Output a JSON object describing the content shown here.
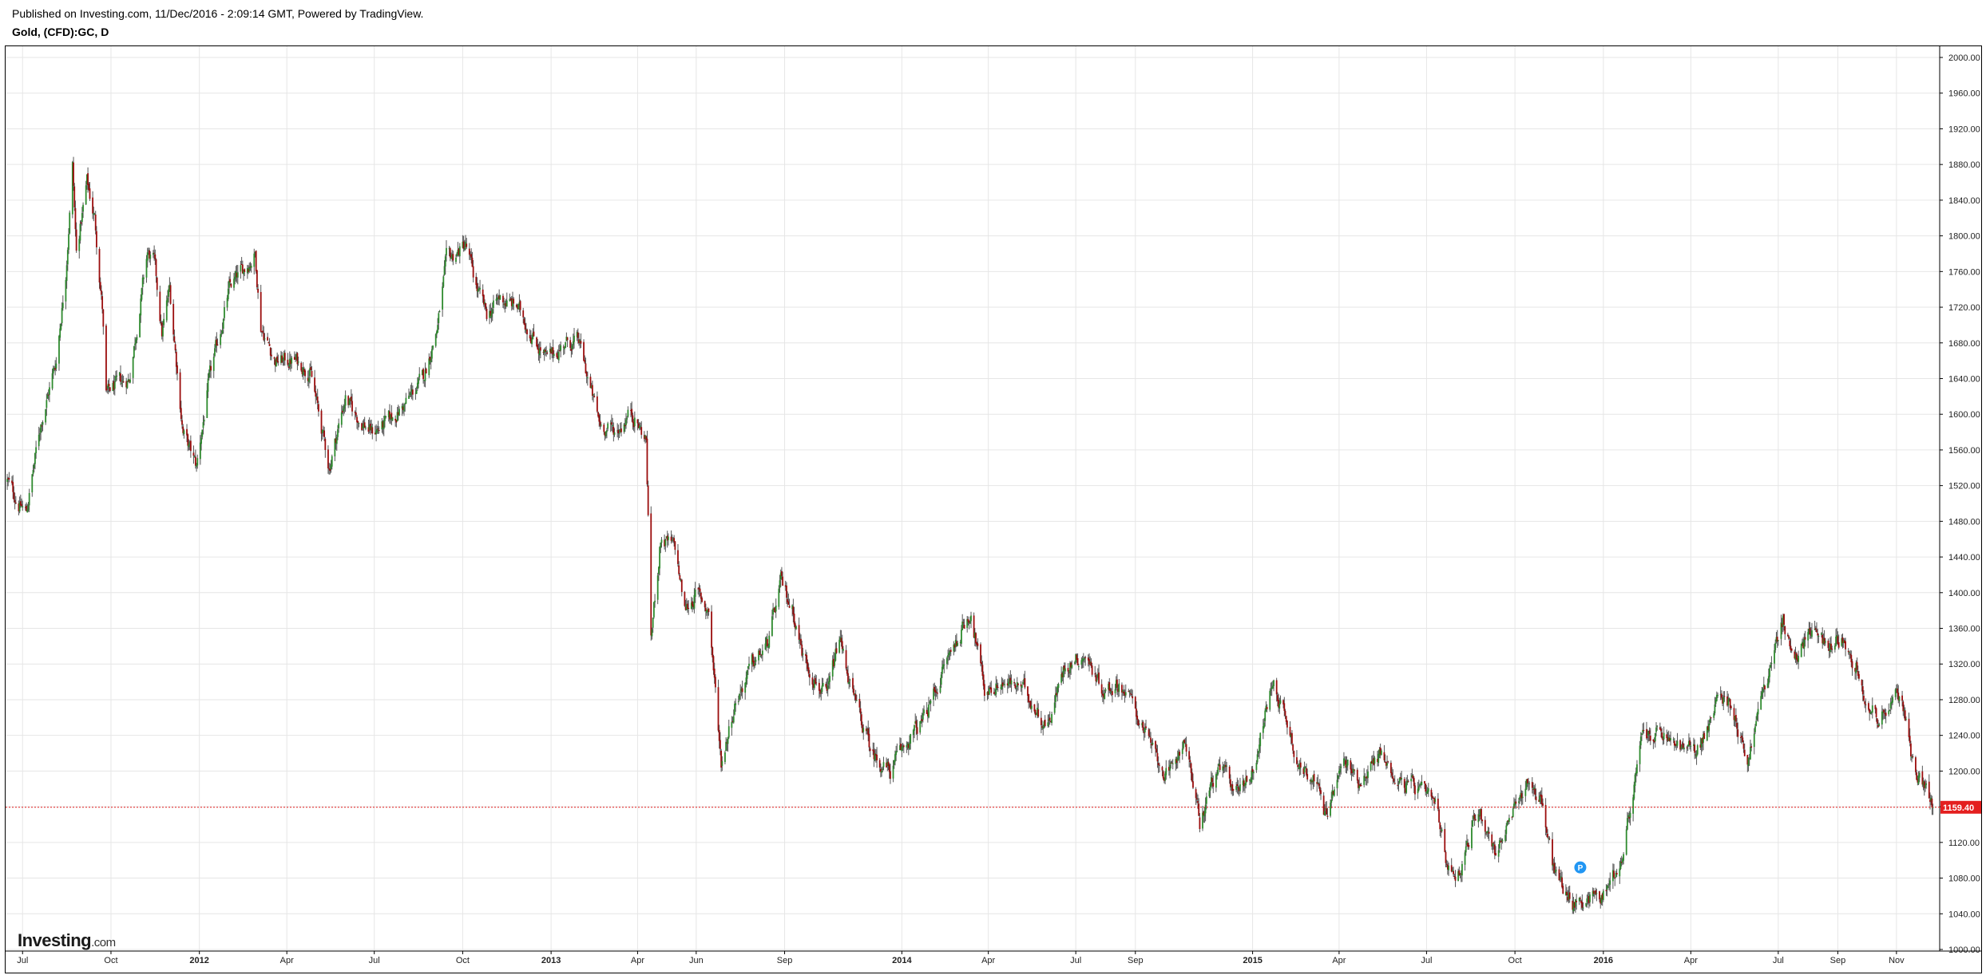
{
  "header": {
    "published": "Published on Investing.com, 11/Dec/2016 - 2:09:14 GMT, Powered by TradingView.",
    "symbol": "Gold, (CFD):GC, D"
  },
  "logo": {
    "brand": "Investing",
    "suffix": ".com"
  },
  "marker": {
    "label": "P",
    "color": "#2196f3",
    "date": "2015-12-08"
  },
  "chart_data": {
    "type": "candlestick",
    "title": "Gold, (CFD):GC, D",
    "interval": "daily",
    "x_range": [
      "2011-06-15",
      "2016-12-11"
    ],
    "ylim": [
      1000,
      2000
    ],
    "y_ticks": [
      "2000.00",
      "1960.00",
      "1920.00",
      "1880.00",
      "1840.00",
      "1800.00",
      "1760.00",
      "1720.00",
      "1680.00",
      "1640.00",
      "1600.00",
      "1560.00",
      "1520.00",
      "1480.00",
      "1440.00",
      "1400.00",
      "1360.00",
      "1320.00",
      "1280.00",
      "1240.00",
      "1200.00",
      "1160.00",
      "1120.00",
      "1080.00",
      "1040.00",
      "1000.00"
    ],
    "x_ticks": [
      {
        "label": "Jul",
        "date": "2011-07-01",
        "bold": false
      },
      {
        "label": "Oct",
        "date": "2011-10-01",
        "bold": false
      },
      {
        "label": "2012",
        "date": "2012-01-01",
        "bold": true
      },
      {
        "label": "Apr",
        "date": "2012-04-01",
        "bold": false
      },
      {
        "label": "Jul",
        "date": "2012-07-01",
        "bold": false
      },
      {
        "label": "Oct",
        "date": "2012-10-01",
        "bold": false
      },
      {
        "label": "2013",
        "date": "2013-01-01",
        "bold": true
      },
      {
        "label": "Apr",
        "date": "2013-04-01",
        "bold": false
      },
      {
        "label": "Jun",
        "date": "2013-06-01",
        "bold": false
      },
      {
        "label": "Sep",
        "date": "2013-09-01",
        "bold": false
      },
      {
        "label": "2014",
        "date": "2014-01-01",
        "bold": true
      },
      {
        "label": "Apr",
        "date": "2014-04-01",
        "bold": false
      },
      {
        "label": "Jul",
        "date": "2014-07-01",
        "bold": false
      },
      {
        "label": "Sep",
        "date": "2014-09-01",
        "bold": false
      },
      {
        "label": "2015",
        "date": "2015-01-01",
        "bold": true
      },
      {
        "label": "Apr",
        "date": "2015-04-01",
        "bold": false
      },
      {
        "label": "Jul",
        "date": "2015-07-01",
        "bold": false
      },
      {
        "label": "Oct",
        "date": "2015-10-01",
        "bold": false
      },
      {
        "label": "2016",
        "date": "2016-01-01",
        "bold": true
      },
      {
        "label": "Apr",
        "date": "2016-04-01",
        "bold": false
      },
      {
        "label": "Jul",
        "date": "2016-07-01",
        "bold": false
      },
      {
        "label": "Sep",
        "date": "2016-09-01",
        "bold": false
      },
      {
        "label": "Nov",
        "date": "2016-11-01",
        "bold": false
      }
    ],
    "last_price": "1159.40",
    "last_price_value": 1159.4,
    "colors": {
      "up": "#2e8b2e",
      "down": "#9b0d0d",
      "last_price": "#e41f1f",
      "grid": "#e6e6e6",
      "axis": "#000000"
    },
    "close_path": [
      [
        "2011-06-15",
        1525
      ],
      [
        "2011-06-27",
        1500
      ],
      [
        "2011-07-05",
        1490
      ],
      [
        "2011-07-20",
        1590
      ],
      [
        "2011-08-05",
        1660
      ],
      [
        "2011-08-15",
        1760
      ],
      [
        "2011-08-22",
        1880
      ],
      [
        "2011-08-26",
        1780
      ],
      [
        "2011-09-06",
        1860
      ],
      [
        "2011-09-14",
        1820
      ],
      [
        "2011-09-22",
        1720
      ],
      [
        "2011-09-26",
        1620
      ],
      [
        "2011-10-04",
        1630
      ],
      [
        "2011-10-20",
        1640
      ],
      [
        "2011-11-08",
        1780
      ],
      [
        "2011-11-15",
        1770
      ],
      [
        "2011-11-23",
        1690
      ],
      [
        "2011-12-01",
        1740
      ],
      [
        "2011-12-15",
        1580
      ],
      [
        "2011-12-29",
        1540
      ],
      [
        "2012-01-10",
        1630
      ],
      [
        "2012-02-01",
        1740
      ],
      [
        "2012-02-28",
        1780
      ],
      [
        "2012-03-05",
        1700
      ],
      [
        "2012-03-20",
        1660
      ],
      [
        "2012-04-10",
        1660
      ],
      [
        "2012-04-25",
        1650
      ],
      [
        "2012-05-15",
        1540
      ],
      [
        "2012-06-01",
        1620
      ],
      [
        "2012-06-10",
        1600
      ],
      [
        "2012-06-29",
        1580
      ],
      [
        "2012-07-15",
        1590
      ],
      [
        "2012-08-01",
        1610
      ],
      [
        "2012-08-21",
        1640
      ],
      [
        "2012-09-05",
        1700
      ],
      [
        "2012-09-14",
        1770
      ],
      [
        "2012-10-04",
        1790
      ],
      [
        "2012-10-16",
        1740
      ],
      [
        "2012-10-26",
        1710
      ],
      [
        "2012-11-09",
        1730
      ],
      [
        "2012-11-27",
        1720
      ],
      [
        "2012-12-07",
        1700
      ],
      [
        "2012-12-28",
        1660
      ],
      [
        "2013-01-15",
        1680
      ],
      [
        "2013-01-30",
        1680
      ],
      [
        "2013-02-20",
        1590
      ],
      [
        "2013-03-10",
        1580
      ],
      [
        "2013-03-25",
        1605
      ],
      [
        "2013-04-10",
        1570
      ],
      [
        "2013-04-15",
        1350
      ],
      [
        "2013-04-25",
        1460
      ],
      [
        "2013-05-10",
        1450
      ],
      [
        "2013-05-20",
        1380
      ],
      [
        "2013-06-01",
        1400
      ],
      [
        "2013-06-14",
        1380
      ],
      [
        "2013-06-27",
        1210
      ],
      [
        "2013-07-12",
        1280
      ],
      [
        "2013-07-30",
        1320
      ],
      [
        "2013-08-14",
        1340
      ],
      [
        "2013-08-28",
        1410
      ],
      [
        "2013-09-10",
        1380
      ],
      [
        "2013-09-20",
        1330
      ],
      [
        "2013-10-15",
        1280
      ],
      [
        "2013-10-28",
        1350
      ],
      [
        "2013-11-12",
        1280
      ],
      [
        "2013-12-01",
        1220
      ],
      [
        "2013-12-20",
        1200
      ],
      [
        "2014-01-05",
        1230
      ],
      [
        "2014-01-25",
        1260
      ],
      [
        "2014-02-15",
        1320
      ],
      [
        "2014-03-14",
        1380
      ],
      [
        "2014-03-28",
        1290
      ],
      [
        "2014-04-15",
        1300
      ],
      [
        "2014-05-10",
        1290
      ],
      [
        "2014-06-01",
        1250
      ],
      [
        "2014-06-20",
        1320
      ],
      [
        "2014-07-10",
        1330
      ],
      [
        "2014-07-31",
        1290
      ],
      [
        "2014-08-15",
        1300
      ],
      [
        "2014-09-01",
        1270
      ],
      [
        "2014-09-20",
        1220
      ],
      [
        "2014-10-06",
        1190
      ],
      [
        "2014-10-22",
        1240
      ],
      [
        "2014-11-07",
        1140
      ],
      [
        "2014-11-20",
        1190
      ],
      [
        "2014-12-01",
        1200
      ],
      [
        "2014-12-15",
        1180
      ],
      [
        "2015-01-01",
        1200
      ],
      [
        "2015-01-22",
        1300
      ],
      [
        "2015-02-05",
        1260
      ],
      [
        "2015-02-20",
        1200
      ],
      [
        "2015-03-05",
        1200
      ],
      [
        "2015-03-17",
        1150
      ],
      [
        "2015-04-06",
        1210
      ],
      [
        "2015-04-21",
        1190
      ],
      [
        "2015-05-14",
        1220
      ],
      [
        "2015-06-01",
        1190
      ],
      [
        "2015-06-20",
        1180
      ],
      [
        "2015-07-10",
        1160
      ],
      [
        "2015-07-24",
        1090
      ],
      [
        "2015-08-05",
        1090
      ],
      [
        "2015-08-24",
        1160
      ],
      [
        "2015-09-10",
        1110
      ],
      [
        "2015-09-25",
        1140
      ],
      [
        "2015-10-14",
        1190
      ],
      [
        "2015-10-28",
        1170
      ],
      [
        "2015-11-10",
        1090
      ],
      [
        "2015-12-02",
        1050
      ],
      [
        "2015-12-16",
        1060
      ],
      [
        "2015-12-30",
        1060
      ],
      [
        "2016-01-20",
        1100
      ],
      [
        "2016-02-11",
        1240
      ],
      [
        "2016-03-01",
        1240
      ],
      [
        "2016-03-15",
        1230
      ],
      [
        "2016-04-05",
        1220
      ],
      [
        "2016-04-20",
        1250
      ],
      [
        "2016-05-02",
        1290
      ],
      [
        "2016-05-15",
        1270
      ],
      [
        "2016-05-30",
        1210
      ],
      [
        "2016-06-15",
        1290
      ],
      [
        "2016-06-24",
        1320
      ],
      [
        "2016-07-06",
        1370
      ],
      [
        "2016-07-20",
        1320
      ],
      [
        "2016-08-02",
        1360
      ],
      [
        "2016-08-20",
        1340
      ],
      [
        "2016-09-06",
        1350
      ],
      [
        "2016-09-20",
        1320
      ],
      [
        "2016-10-04",
        1270
      ],
      [
        "2016-10-12",
        1260
      ],
      [
        "2016-10-31",
        1280
      ],
      [
        "2016-11-09",
        1270
      ],
      [
        "2016-11-18",
        1210
      ],
      [
        "2016-12-01",
        1180
      ],
      [
        "2016-12-09",
        1159.4
      ]
    ]
  }
}
